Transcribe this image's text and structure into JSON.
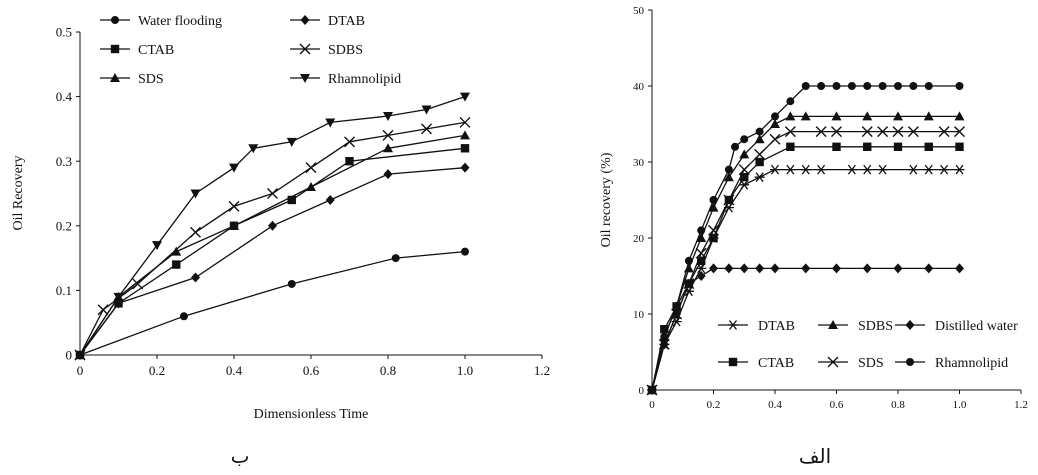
{
  "chart_data": [
    {
      "type": "line",
      "caption": "ب",
      "xlabel": "Dimensionless Time",
      "ylabel": "Oil Recovery",
      "xlim": [
        0,
        1.2
      ],
      "ylim": [
        0,
        0.5
      ],
      "x_ticks": [
        "0",
        "0.2",
        "0.4",
        "0.6",
        "0.8",
        "1.0",
        "1.2"
      ],
      "y_ticks": [
        "0",
        "0.1",
        "0.2",
        "0.3",
        "0.4",
        "0.5"
      ],
      "grid": false,
      "legend_position": "top-left",
      "series": [
        {
          "name": "Water flooding",
          "marker": "circle",
          "x": [
            0,
            0.27,
            0.55,
            0.82,
            1.0
          ],
          "y": [
            0,
            0.06,
            0.11,
            0.15,
            0.16
          ]
        },
        {
          "name": "DTAB",
          "marker": "diamond",
          "x": [
            0,
            0.1,
            0.3,
            0.5,
            0.65,
            0.8,
            1.0
          ],
          "y": [
            0,
            0.08,
            0.12,
            0.2,
            0.24,
            0.28,
            0.29
          ]
        },
        {
          "name": "CTAB",
          "marker": "square",
          "x": [
            0,
            0.1,
            0.25,
            0.4,
            0.55,
            0.7,
            1.0
          ],
          "y": [
            0,
            0.08,
            0.14,
            0.2,
            0.24,
            0.3,
            0.32
          ]
        },
        {
          "name": "SDBS",
          "marker": "x",
          "x": [
            0,
            0.06,
            0.15,
            0.3,
            0.4,
            0.5,
            0.6,
            0.7,
            0.8,
            0.9,
            1.0
          ],
          "y": [
            0,
            0.07,
            0.11,
            0.19,
            0.23,
            0.25,
            0.29,
            0.33,
            0.34,
            0.35,
            0.36
          ]
        },
        {
          "name": "SDS",
          "marker": "triangle-up",
          "x": [
            0,
            0.1,
            0.25,
            0.4,
            0.6,
            0.8,
            1.0
          ],
          "y": [
            0,
            0.09,
            0.16,
            0.2,
            0.26,
            0.32,
            0.34
          ]
        },
        {
          "name": "Rhamnolipid",
          "marker": "triangle-down",
          "x": [
            0,
            0.1,
            0.2,
            0.3,
            0.4,
            0.45,
            0.55,
            0.65,
            0.8,
            0.9,
            1.0
          ],
          "y": [
            0,
            0.09,
            0.17,
            0.25,
            0.29,
            0.32,
            0.33,
            0.36,
            0.37,
            0.38,
            0.4
          ]
        }
      ]
    },
    {
      "type": "line",
      "caption": "الف",
      "xlabel": "",
      "ylabel": "Oil recovery (%)",
      "xlim": [
        0,
        1.2
      ],
      "ylim": [
        0,
        50
      ],
      "x_ticks": [
        "0",
        "0.2",
        "0.4",
        "0.6",
        "0.8",
        "1.0",
        "1.2"
      ],
      "y_ticks": [
        "0",
        "10",
        "20",
        "30",
        "40",
        "50"
      ],
      "grid": false,
      "legend_position": "bottom-right",
      "series": [
        {
          "name": "DTAB",
          "marker": "asterisk",
          "x": [
            0,
            0.04,
            0.08,
            0.12,
            0.16,
            0.2,
            0.25,
            0.3,
            0.35,
            0.4,
            0.45,
            0.5,
            0.55,
            0.65,
            0.7,
            0.75,
            0.85,
            0.9,
            0.95,
            1.0
          ],
          "y": [
            0,
            6,
            9,
            13,
            16,
            20,
            24,
            27,
            28,
            29,
            29,
            29,
            29,
            29,
            29,
            29,
            29,
            29,
            29,
            29
          ]
        },
        {
          "name": "SDBS",
          "marker": "triangle-up",
          "x": [
            0,
            0.04,
            0.08,
            0.12,
            0.16,
            0.2,
            0.25,
            0.3,
            0.35,
            0.4,
            0.45,
            0.5,
            0.6,
            0.7,
            0.8,
            0.9,
            1.0
          ],
          "y": [
            0,
            7,
            11,
            16,
            20,
            24,
            28,
            31,
            33,
            35,
            36,
            36,
            36,
            36,
            36,
            36,
            36
          ]
        },
        {
          "name": "Distilled water",
          "marker": "diamond",
          "x": [
            0,
            0.04,
            0.08,
            0.12,
            0.16,
            0.2,
            0.25,
            0.3,
            0.35,
            0.4,
            0.5,
            0.6,
            0.7,
            0.8,
            0.9,
            1.0
          ],
          "y": [
            0,
            6,
            10,
            14,
            15,
            16,
            16,
            16,
            16,
            16,
            16,
            16,
            16,
            16,
            16,
            16
          ]
        },
        {
          "name": "CTAB",
          "marker": "square",
          "x": [
            0,
            0.04,
            0.08,
            0.12,
            0.16,
            0.2,
            0.25,
            0.3,
            0.35,
            0.45,
            0.6,
            0.7,
            0.8,
            0.9,
            1.0
          ],
          "y": [
            0,
            8,
            11,
            14,
            17,
            20,
            25,
            28,
            30,
            32,
            32,
            32,
            32,
            32,
            32
          ]
        },
        {
          "name": "SDS",
          "marker": "x",
          "x": [
            0,
            0.04,
            0.08,
            0.12,
            0.16,
            0.2,
            0.25,
            0.3,
            0.35,
            0.4,
            0.45,
            0.55,
            0.6,
            0.7,
            0.75,
            0.8,
            0.85,
            0.95,
            1.0
          ],
          "y": [
            0,
            6,
            10,
            14,
            18,
            21,
            25,
            29,
            31,
            33,
            34,
            34,
            34,
            34,
            34,
            34,
            34,
            34,
            34
          ]
        },
        {
          "name": "Rhamnolipid",
          "marker": "circle",
          "x": [
            0,
            0.04,
            0.08,
            0.12,
            0.16,
            0.2,
            0.25,
            0.27,
            0.3,
            0.35,
            0.4,
            0.45,
            0.5,
            0.55,
            0.6,
            0.65,
            0.7,
            0.75,
            0.8,
            0.85,
            0.9,
            1.0
          ],
          "y": [
            0,
            7,
            11,
            17,
            21,
            25,
            29,
            32,
            33,
            34,
            36,
            38,
            40,
            40,
            40,
            40,
            40,
            40,
            40,
            40,
            40,
            40
          ]
        }
      ]
    }
  ]
}
